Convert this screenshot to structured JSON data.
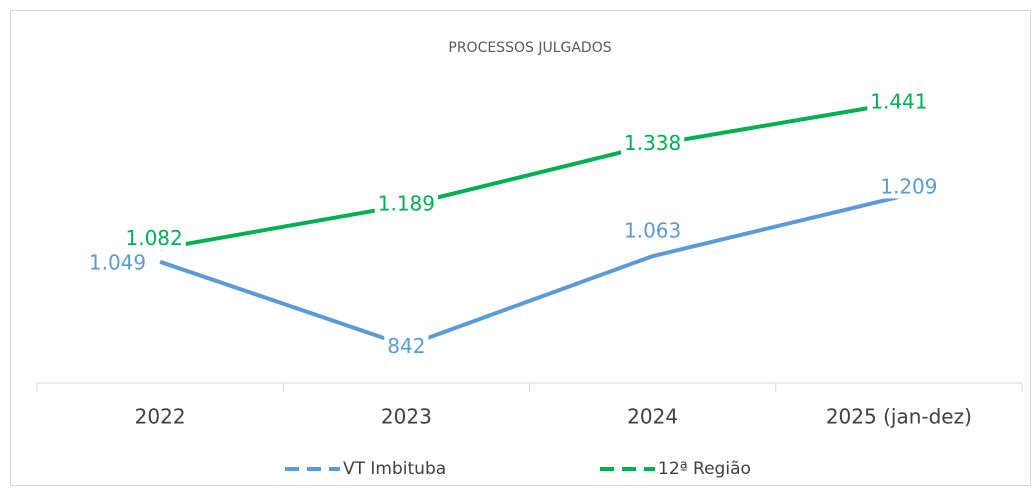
{
  "chart_data": {
    "type": "line",
    "title": "PROCESSOS JULGADOS",
    "categories": [
      "2022",
      "2023",
      "2024",
      "2025 (jan-dez)"
    ],
    "series": [
      {
        "name": "VT Imbituba",
        "color": "#5b9bd5",
        "values": [
          1049,
          842,
          1063,
          1209
        ],
        "value_labels": [
          "1.049",
          "842",
          "1.063",
          "1.209"
        ]
      },
      {
        "name": "12ª Região",
        "color": "#00b050",
        "values": [
          1082,
          1189,
          1338,
          1441
        ],
        "value_labels": [
          "1.082",
          "1.189",
          "1.338",
          "1.441"
        ]
      }
    ],
    "ylim": [
      750,
      1500
    ]
  }
}
